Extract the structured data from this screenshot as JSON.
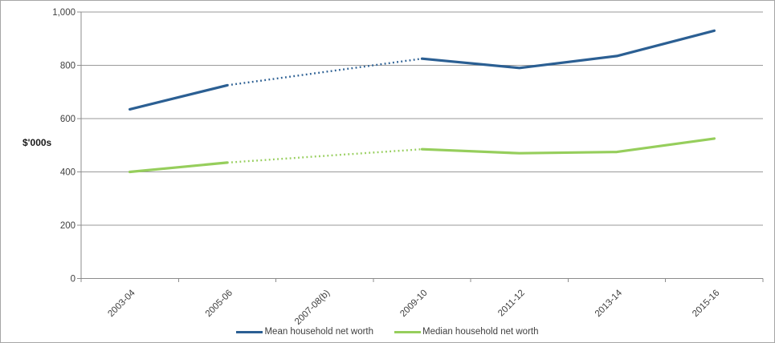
{
  "chart_data": {
    "type": "line",
    "title": "",
    "ylabel": "$'000s",
    "xlabel": "",
    "categories": [
      "2003-04",
      "2005-06",
      "2007-08(b)",
      "2009-10",
      "2011-12",
      "2013-14",
      "2015-16"
    ],
    "series": [
      {
        "name": "Mean household net worth",
        "color": "#2b5f93",
        "values": [
          635,
          725,
          775,
          825,
          790,
          835,
          930
        ],
        "dashed_segment": {
          "from": 1,
          "to": 3,
          "from_category": "2005-06",
          "to_category": "2009-10"
        }
      },
      {
        "name": "Median household net worth",
        "color": "#96ce5c",
        "values": [
          400,
          435,
          460,
          485,
          470,
          475,
          525
        ],
        "dashed_segment": {
          "from": 1,
          "to": 3,
          "from_category": "2005-06",
          "to_category": "2009-10"
        }
      }
    ],
    "y_axis": {
      "min": 0,
      "max": 1000,
      "tick_interval": 200,
      "tick_labels": [
        "0",
        "200",
        "400",
        "600",
        "800",
        "1,000"
      ]
    },
    "grid": true,
    "legend_position": "bottom"
  },
  "colors": {
    "background": "#ffffff",
    "border": "#a6a6a6",
    "gridline": "#9a9a9a",
    "axis": "#8c8c8c",
    "tick": "#8c8c8c",
    "text": "#3f3f3f",
    "mean_series": "#2b5f93",
    "median_series": "#96ce5c"
  }
}
